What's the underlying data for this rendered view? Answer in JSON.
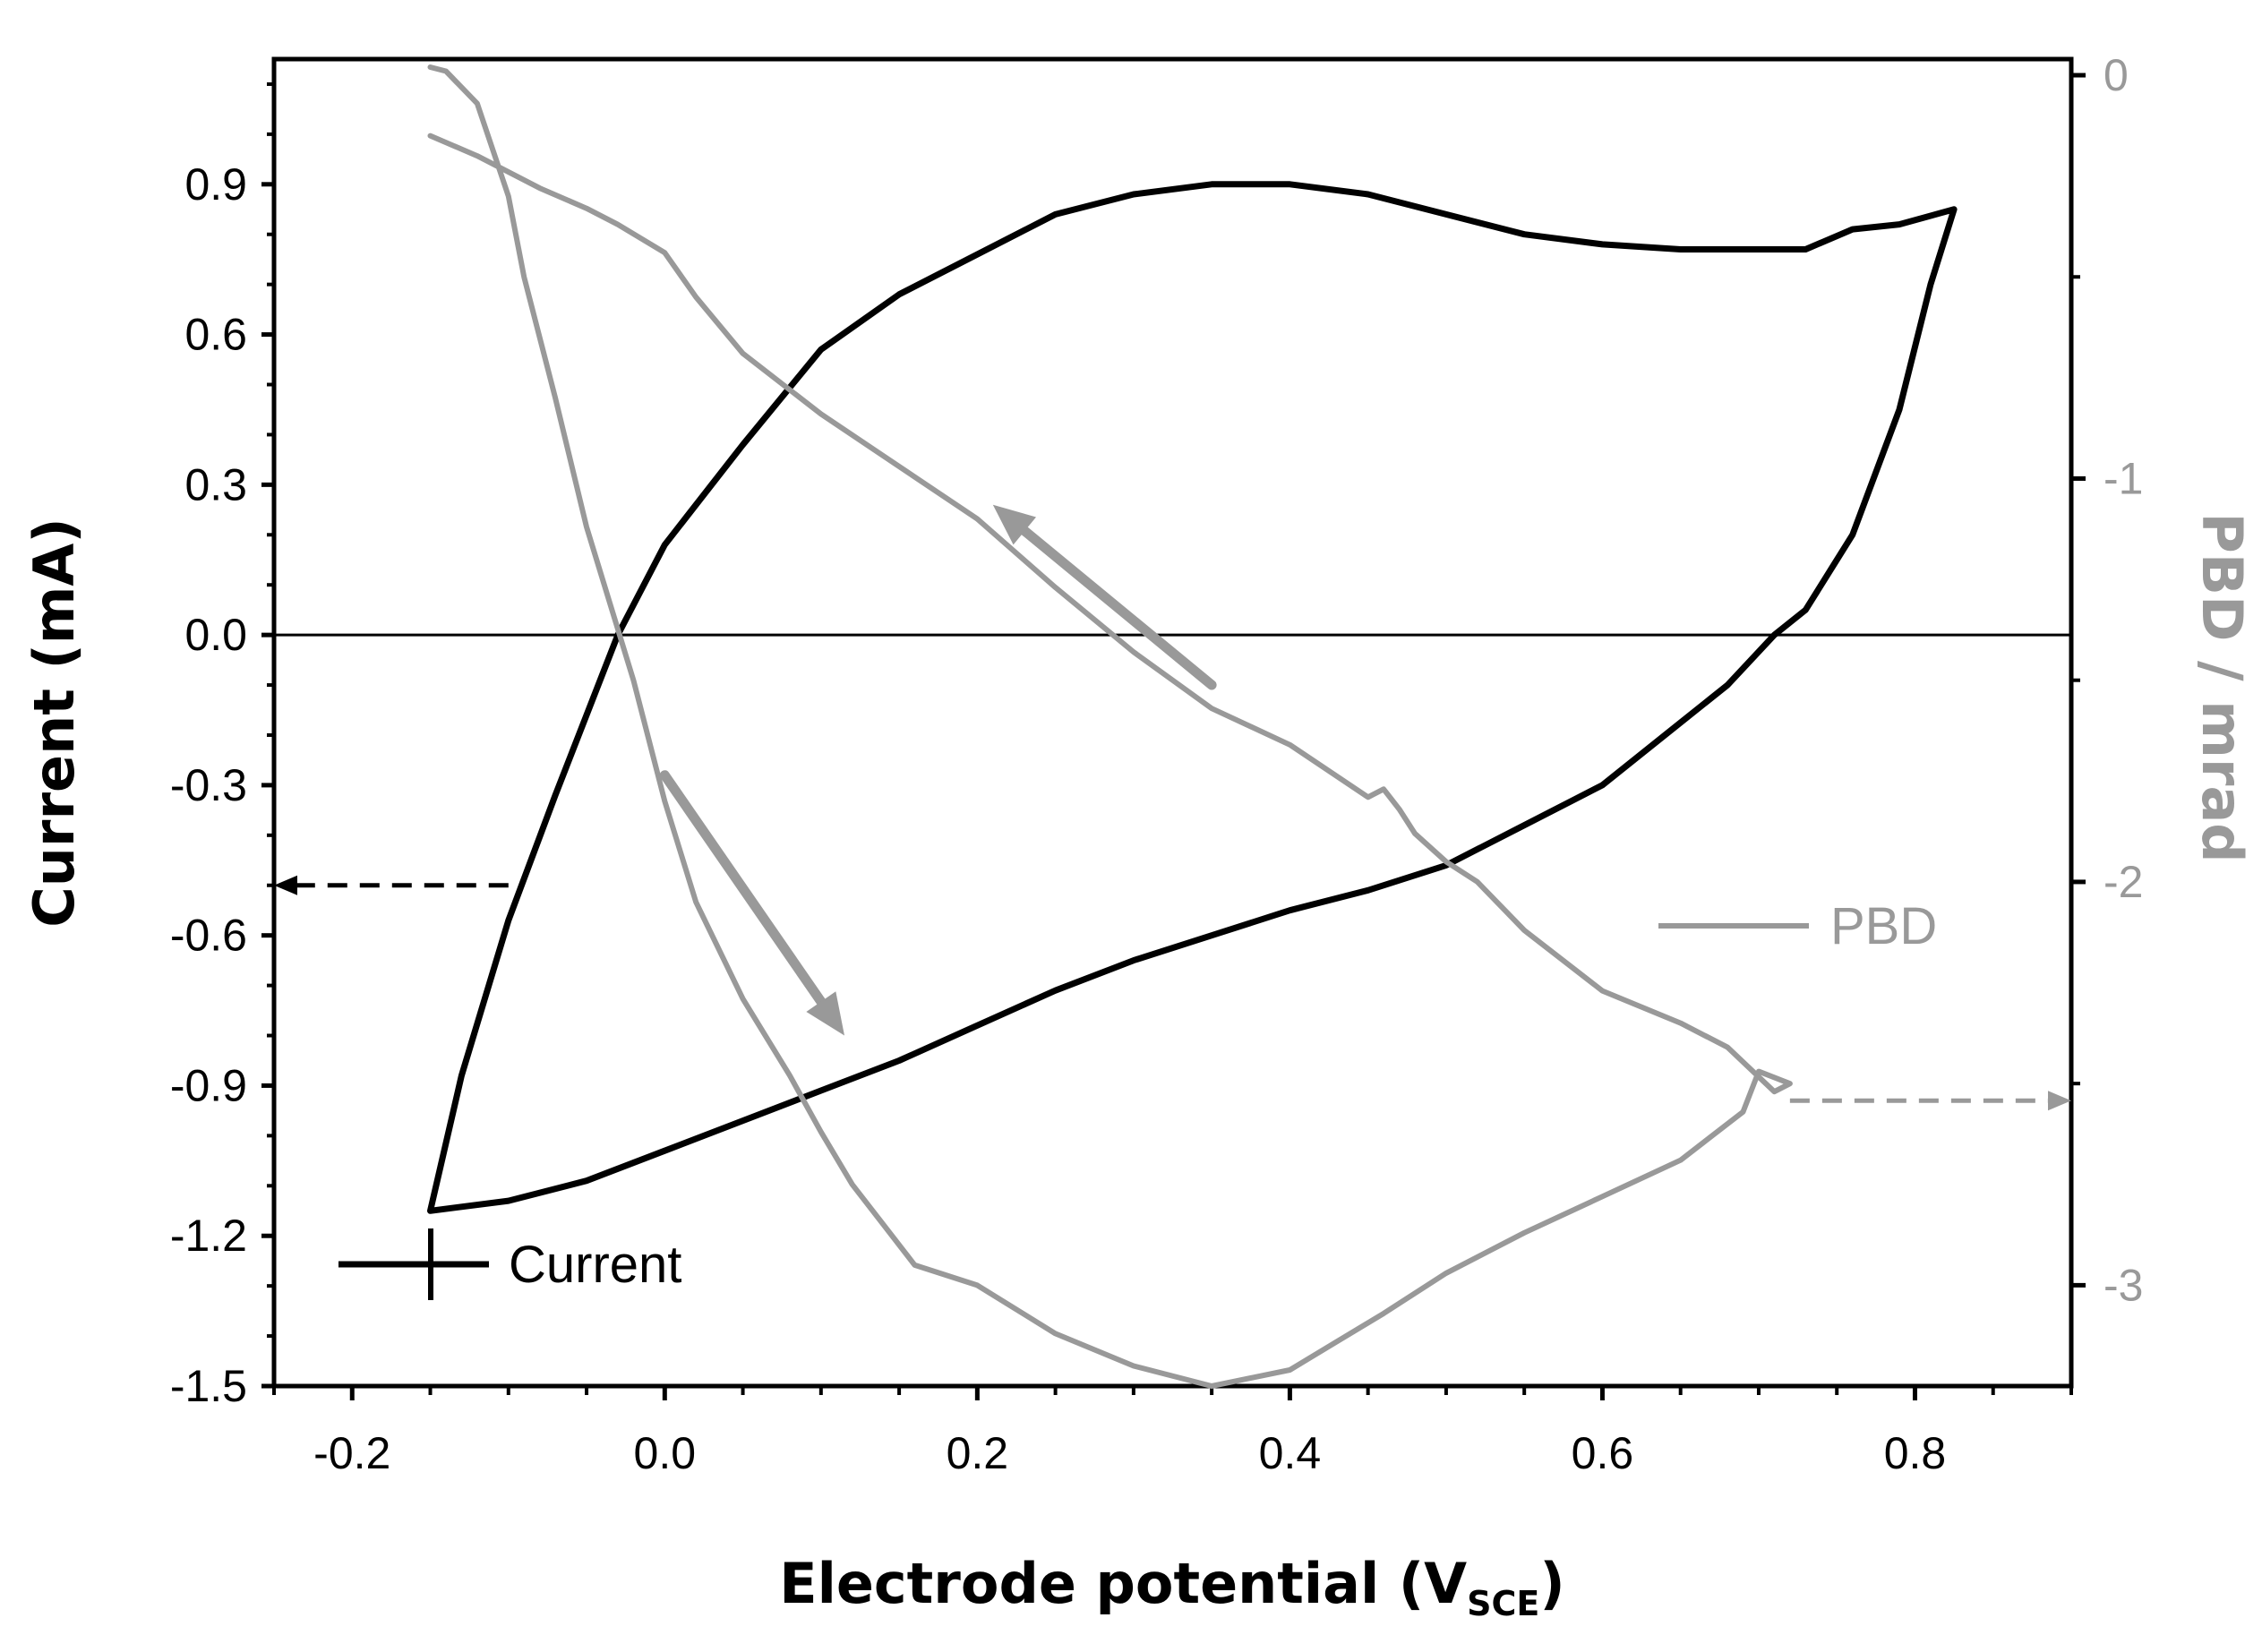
{
  "chart_data": {
    "type": "line",
    "title": "",
    "xlabel": "Electrode potential (V",
    "xlabel_subscript": "SCE",
    "xlabel_close": ")",
    "ylabel": "Current (mA)",
    "y2label": "PBD / mrad",
    "xlim": [
      -0.25,
      0.9
    ],
    "ylim": [
      -1.5,
      1.15
    ],
    "y2lim": [
      -3.25,
      0.04
    ],
    "x_ticks": [
      "-0.2",
      "0.0",
      "0.2",
      "0.4",
      "0.6",
      "0.8"
    ],
    "y_ticks": [
      "-1.5",
      "-1.2",
      "-0.9",
      "-0.6",
      "-0.3",
      "0.0",
      "0.3",
      "0.6",
      "0.9"
    ],
    "y2_ticks": [
      "-3",
      "-2",
      "-1",
      "0"
    ],
    "colors": {
      "current": "#000000",
      "pbd": "#999999",
      "zero_line": "#000000"
    },
    "series": [
      {
        "name": "Current",
        "axis": "left",
        "x": [
          -0.15,
          -0.13,
          -0.1,
          -0.07,
          -0.05,
          -0.03,
          0.0,
          0.05,
          0.1,
          0.15,
          0.2,
          0.25,
          0.3,
          0.35,
          0.4,
          0.45,
          0.5,
          0.55,
          0.6,
          0.65,
          0.7,
          0.73,
          0.76,
          0.79,
          0.825,
          0.81,
          0.79,
          0.76,
          0.73,
          0.71,
          0.68,
          0.64,
          0.6,
          0.55,
          0.5,
          0.45,
          0.4,
          0.35,
          0.3,
          0.25,
          0.2,
          0.15,
          0.1,
          0.05,
          0.0,
          -0.05,
          -0.1,
          -0.15
        ],
        "values": [
          -1.15,
          -0.88,
          -0.57,
          -0.32,
          -0.16,
          0.0,
          0.18,
          0.38,
          0.57,
          0.68,
          0.76,
          0.84,
          0.88,
          0.9,
          0.9,
          0.88,
          0.84,
          0.8,
          0.78,
          0.77,
          0.77,
          0.77,
          0.81,
          0.82,
          0.85,
          0.7,
          0.45,
          0.2,
          0.05,
          0.0,
          -0.1,
          -0.2,
          -0.3,
          -0.38,
          -0.46,
          -0.51,
          -0.55,
          -0.6,
          -0.65,
          -0.71,
          -0.78,
          -0.85,
          -0.91,
          -0.97,
          -1.03,
          -1.09,
          -1.13,
          -1.15
        ]
      },
      {
        "name": "PBD",
        "axis": "right",
        "x": [
          -0.15,
          -0.14,
          -0.12,
          -0.1,
          -0.09,
          -0.07,
          -0.05,
          -0.02,
          0.0,
          0.02,
          0.05,
          0.08,
          0.1,
          0.12,
          0.14,
          0.16,
          0.2,
          0.25,
          0.3,
          0.35,
          0.4,
          0.43,
          0.46,
          0.5,
          0.55,
          0.6,
          0.65,
          0.69,
          0.7,
          0.72,
          0.71,
          0.68,
          0.65,
          0.6,
          0.55,
          0.52,
          0.5,
          0.48,
          0.47,
          0.46,
          0.45,
          0.4,
          0.35,
          0.3,
          0.25,
          0.2,
          0.15,
          0.1,
          0.05,
          0.02,
          0.0,
          -0.03,
          -0.05,
          -0.08,
          -0.1,
          -0.12,
          -0.15
        ],
        "values": [
          0.02,
          0.01,
          -0.07,
          -0.3,
          -0.5,
          -0.8,
          -1.12,
          -1.5,
          -1.8,
          -2.05,
          -2.29,
          -2.48,
          -2.62,
          -2.75,
          -2.85,
          -2.95,
          -3.0,
          -3.12,
          -3.2,
          -3.25,
          -3.21,
          -3.14,
          -3.07,
          -2.97,
          -2.87,
          -2.78,
          -2.69,
          -2.57,
          -2.47,
          -2.5,
          -2.52,
          -2.41,
          -2.35,
          -2.27,
          -2.12,
          -2.0,
          -1.95,
          -1.88,
          -1.82,
          -1.77,
          -1.79,
          -1.66,
          -1.57,
          -1.43,
          -1.27,
          -1.1,
          -0.97,
          -0.84,
          -0.69,
          -0.55,
          -0.44,
          -0.37,
          -0.33,
          -0.28,
          -0.24,
          -0.2,
          -0.15
        ]
      }
    ],
    "zero_line": 0.0,
    "annotations": [
      {
        "id": "arrow-to-left-axis",
        "style": "dashed",
        "color": "#000000",
        "from": [
          -0.1,
          -0.5
        ],
        "to": [
          -0.25,
          -0.5
        ]
      },
      {
        "id": "arrow-to-right-axis",
        "style": "dashed",
        "color": "#999999",
        "from": [
          0.72,
          -0.93
        ],
        "to": [
          0.9,
          -0.93
        ]
      },
      {
        "id": "sweep-arrow-down",
        "style": "solid",
        "color": "#999999",
        "from": [
          0.0,
          -0.28
        ],
        "to": [
          0.115,
          -0.8
        ]
      },
      {
        "id": "sweep-arrow-up",
        "style": "solid",
        "color": "#999999",
        "from": [
          0.35,
          -0.1
        ],
        "to": [
          0.21,
          0.26
        ]
      }
    ],
    "legend": [
      {
        "label": "Current",
        "color": "#000000",
        "placement": "bottom-left"
      },
      {
        "label": "PBD",
        "color": "#999999",
        "placement": "right-middle"
      }
    ]
  }
}
